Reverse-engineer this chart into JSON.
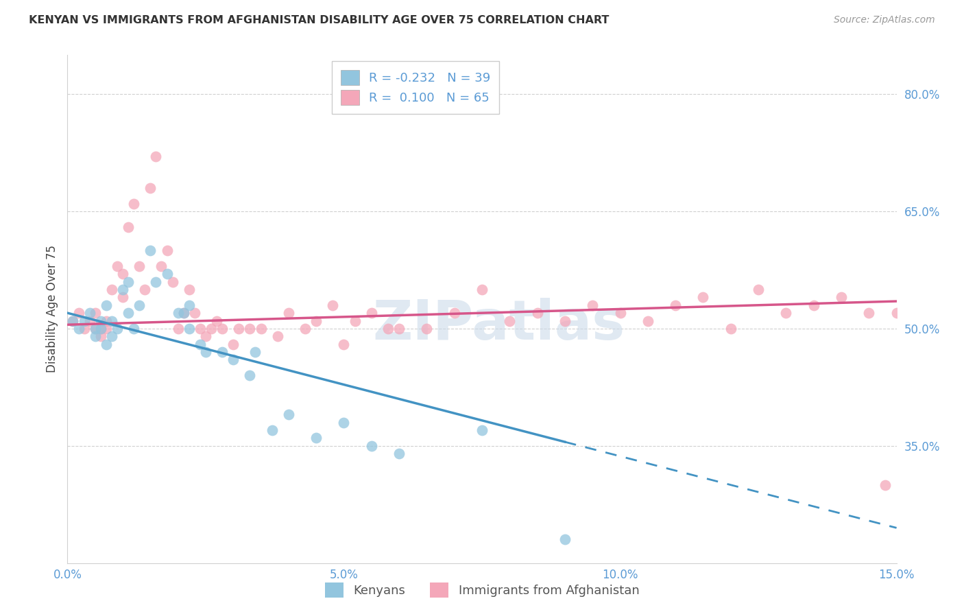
{
  "title": "KENYAN VS IMMIGRANTS FROM AFGHANISTAN DISABILITY AGE OVER 75 CORRELATION CHART",
  "source": "Source: ZipAtlas.com",
  "ylabel": "Disability Age Over 75",
  "xlim": [
    0.0,
    0.15
  ],
  "ylim": [
    0.2,
    0.85
  ],
  "x_ticks": [
    0.0,
    0.05,
    0.1,
    0.15
  ],
  "x_tick_labels": [
    "0.0%",
    "5.0%",
    "10.0%",
    "15.0%"
  ],
  "y_ticks_right": [
    0.35,
    0.5,
    0.65,
    0.8
  ],
  "y_tick_labels_right": [
    "35.0%",
    "50.0%",
    "65.0%",
    "80.0%"
  ],
  "kenyans_R": "-0.232",
  "kenyans_N": "39",
  "afghan_R": "0.100",
  "afghan_N": "65",
  "blue_color": "#92c5de",
  "pink_color": "#f4a7b9",
  "blue_line_color": "#4393c3",
  "pink_line_color": "#d6568a",
  "watermark_text": "ZIPatlas",
  "kenyans_x": [
    0.001,
    0.002,
    0.003,
    0.004,
    0.005,
    0.005,
    0.006,
    0.006,
    0.007,
    0.007,
    0.008,
    0.008,
    0.009,
    0.01,
    0.011,
    0.011,
    0.012,
    0.013,
    0.015,
    0.016,
    0.018,
    0.02,
    0.021,
    0.022,
    0.022,
    0.024,
    0.025,
    0.028,
    0.03,
    0.033,
    0.034,
    0.037,
    0.04,
    0.045,
    0.05,
    0.055,
    0.06,
    0.075,
    0.09
  ],
  "kenyans_y": [
    0.51,
    0.5,
    0.51,
    0.52,
    0.49,
    0.5,
    0.51,
    0.5,
    0.48,
    0.53,
    0.49,
    0.51,
    0.5,
    0.55,
    0.52,
    0.56,
    0.5,
    0.53,
    0.6,
    0.56,
    0.57,
    0.52,
    0.52,
    0.5,
    0.53,
    0.48,
    0.47,
    0.47,
    0.46,
    0.44,
    0.47,
    0.37,
    0.39,
    0.36,
    0.38,
    0.35,
    0.34,
    0.37,
    0.23
  ],
  "afghan_x": [
    0.001,
    0.002,
    0.003,
    0.004,
    0.005,
    0.005,
    0.006,
    0.006,
    0.007,
    0.007,
    0.008,
    0.009,
    0.01,
    0.01,
    0.011,
    0.012,
    0.013,
    0.014,
    0.015,
    0.016,
    0.017,
    0.018,
    0.019,
    0.02,
    0.021,
    0.022,
    0.023,
    0.024,
    0.025,
    0.026,
    0.027,
    0.028,
    0.03,
    0.031,
    0.033,
    0.035,
    0.038,
    0.04,
    0.043,
    0.045,
    0.048,
    0.05,
    0.052,
    0.055,
    0.058,
    0.06,
    0.065,
    0.07,
    0.075,
    0.08,
    0.085,
    0.09,
    0.095,
    0.1,
    0.105,
    0.11,
    0.115,
    0.12,
    0.125,
    0.13,
    0.135,
    0.14,
    0.145,
    0.148,
    0.15
  ],
  "afghan_y": [
    0.51,
    0.52,
    0.5,
    0.51,
    0.52,
    0.5,
    0.5,
    0.49,
    0.51,
    0.5,
    0.55,
    0.58,
    0.54,
    0.57,
    0.63,
    0.66,
    0.58,
    0.55,
    0.68,
    0.72,
    0.58,
    0.6,
    0.56,
    0.5,
    0.52,
    0.55,
    0.52,
    0.5,
    0.49,
    0.5,
    0.51,
    0.5,
    0.48,
    0.5,
    0.5,
    0.5,
    0.49,
    0.52,
    0.5,
    0.51,
    0.53,
    0.48,
    0.51,
    0.52,
    0.5,
    0.5,
    0.5,
    0.52,
    0.55,
    0.51,
    0.52,
    0.51,
    0.53,
    0.52,
    0.51,
    0.53,
    0.54,
    0.5,
    0.55,
    0.52,
    0.53,
    0.54,
    0.52,
    0.3,
    0.52
  ]
}
